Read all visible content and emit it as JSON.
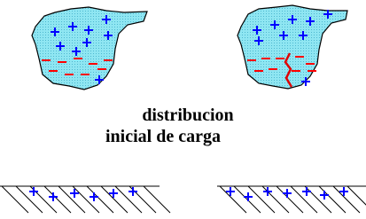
{
  "caption": {
    "line1": "distribucion",
    "line2": "inicial de carga"
  }
}
